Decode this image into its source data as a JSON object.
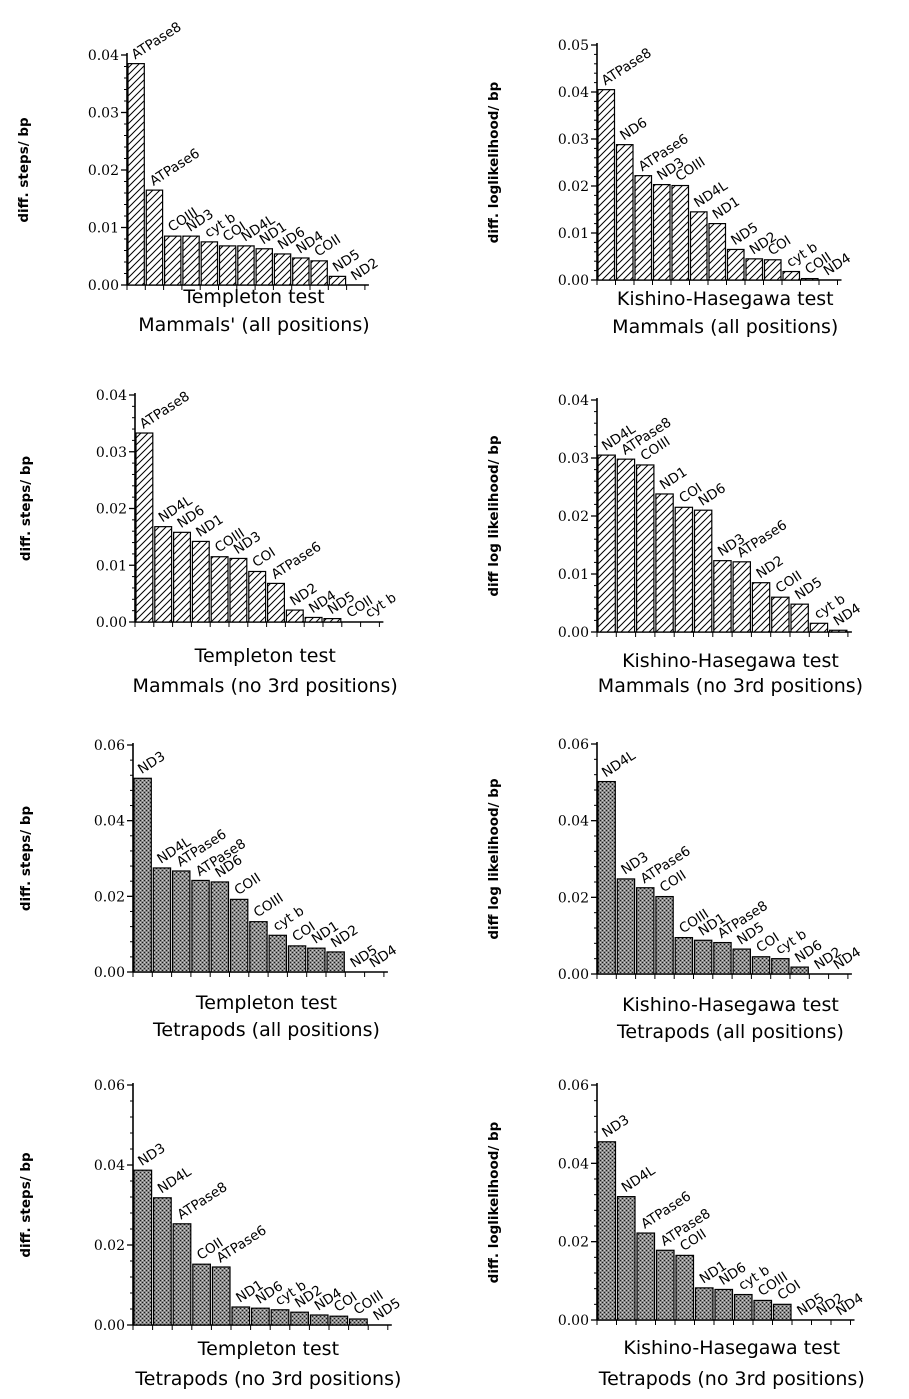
{
  "chart_data": [
    {
      "type": "bar",
      "caption_line1": "Templeton test",
      "caption_line2": "Mammals' (all positions)",
      "ylabel": "diff. steps/ bp",
      "ylim": [
        0,
        0.04
      ],
      "yticks": [
        "0.00",
        "0.01",
        "0.02",
        "0.03",
        "0.04"
      ],
      "pattern": "hatch",
      "categories": [
        "ATPase8",
        "ATPase6",
        "COIII",
        "ND3",
        "cyt b",
        "COI",
        "ND4L",
        "ND1",
        "ND6",
        "ND4",
        "COII",
        "ND5",
        "ND2"
      ],
      "values": [
        0.0385,
        0.0165,
        0.0085,
        0.0085,
        0.0075,
        0.0068,
        0.0068,
        0.0063,
        0.0054,
        0.0047,
        0.0042,
        0.0015,
        0.0
      ]
    },
    {
      "type": "bar",
      "caption_line1": "Kishino-Hasegawa test",
      "caption_line2": "Mammals (all positions)",
      "ylabel": "diff. loglikelihood/ bp",
      "ylim": [
        0,
        0.05
      ],
      "yticks": [
        "0.00",
        "0.01",
        "0.02",
        "0.03",
        "0.04",
        "0.05"
      ],
      "pattern": "hatch",
      "categories": [
        "ATPase8",
        "ND6",
        "ATPase6",
        "ND3",
        "COIII",
        "ND4L",
        "ND1",
        "ND5",
        "ND2",
        "COI",
        "cyt b",
        "COII",
        "ND4"
      ],
      "values": [
        0.0405,
        0.0288,
        0.0222,
        0.0203,
        0.0201,
        0.0145,
        0.012,
        0.0065,
        0.0045,
        0.0043,
        0.0018,
        0.0003,
        0.0
      ]
    },
    {
      "type": "bar",
      "caption_line1": "Templeton test",
      "caption_line2": "Mammals (no 3rd positions)",
      "ylabel": "diff. steps/ bp",
      "ylim": [
        0,
        0.04
      ],
      "yticks": [
        "0.00",
        "0.01",
        "0.02",
        "0.03",
        "0.04"
      ],
      "pattern": "hatch",
      "categories": [
        "ATPase8",
        "ND4L",
        "ND6",
        "ND1",
        "COIII",
        "ND3",
        "COI",
        "ATPase6",
        "ND2",
        "ND4",
        "ND5",
        "COII",
        "cyt b"
      ],
      "values": [
        0.0333,
        0.0168,
        0.0158,
        0.0142,
        0.0115,
        0.0112,
        0.0089,
        0.0068,
        0.0021,
        0.0008,
        0.0006,
        0.0,
        0.0
      ]
    },
    {
      "type": "bar",
      "caption_line1": "Kishino-Hasegawa test",
      "caption_line2": "Mammals (no 3rd positions)",
      "ylabel": "diff log likelihood/ bp",
      "ylim": [
        0,
        0.04
      ],
      "yticks": [
        "0.00",
        "0.01",
        "0.02",
        "0.03",
        "0.04"
      ],
      "pattern": "hatch",
      "categories": [
        "ND4L",
        "ATPase8",
        "COIII",
        "ND1",
        "COI",
        "ND6",
        "ND3",
        "ATPase6",
        "ND2",
        "COII",
        "ND5",
        "cyt b",
        "ND4"
      ],
      "values": [
        0.0305,
        0.0298,
        0.0288,
        0.0238,
        0.0215,
        0.021,
        0.0123,
        0.0121,
        0.0085,
        0.006,
        0.0048,
        0.0015,
        0.0003
      ]
    },
    {
      "type": "bar",
      "caption_line1": "Templeton test",
      "caption_line2": "Tetrapods (all positions)",
      "ylabel": "diff. steps/ bp",
      "ylim": [
        0,
        0.06
      ],
      "yticks": [
        "0.00",
        "0.02",
        "0.04",
        "0.06"
      ],
      "pattern": "stipple",
      "categories": [
        "ND3",
        "ND4L",
        "ATPase6",
        "ATPase8",
        "ND6",
        "COII",
        "COIII",
        "cyt b",
        "COI",
        "ND1",
        "ND2",
        "ND5",
        "ND4"
      ],
      "values": [
        0.0512,
        0.0275,
        0.0267,
        0.0242,
        0.0238,
        0.0192,
        0.0133,
        0.0097,
        0.0069,
        0.0063,
        0.0053,
        0.0,
        0.0
      ]
    },
    {
      "type": "bar",
      "caption_line1": "Kishino-Hasegawa test",
      "caption_line2": "Tetrapods (all positions)",
      "ylabel": "diff log likelihood/ bp",
      "ylim": [
        0,
        0.06
      ],
      "yticks": [
        "0.00",
        "0.02",
        "0.04",
        "0.06"
      ],
      "pattern": "stipple",
      "categories": [
        "ND4L",
        "ND3",
        "ATPase6",
        "COII",
        "COIII",
        "ND1",
        "ATPase8",
        "ND5",
        "COI",
        "cyt b",
        "ND6",
        "ND2",
        "ND4"
      ],
      "values": [
        0.0502,
        0.0248,
        0.0225,
        0.0202,
        0.0095,
        0.0088,
        0.0082,
        0.0065,
        0.0045,
        0.004,
        0.0018,
        0.0,
        0.0
      ]
    },
    {
      "type": "bar",
      "caption_line1": "Templeton test",
      "caption_line2": "Tetrapods (no 3rd positions)",
      "ylabel": "diff. steps/ bp",
      "ylim": [
        0,
        0.06
      ],
      "yticks": [
        "0.00",
        "0.02",
        "0.04",
        "0.06"
      ],
      "pattern": "stipple",
      "categories": [
        "ND3",
        "ND4L",
        "ATPase8",
        "COII",
        "ATPase6",
        "ND1",
        "ND6",
        "cyt b",
        "ND2",
        "ND4",
        "COI",
        "COIII",
        "ND5"
      ],
      "values": [
        0.0387,
        0.0318,
        0.0253,
        0.0152,
        0.0145,
        0.0045,
        0.0042,
        0.0038,
        0.0032,
        0.0025,
        0.0022,
        0.0015,
        0.0
      ]
    },
    {
      "type": "bar",
      "caption_line1": "Kishino-Hasegawa test",
      "caption_line2": "Tetrapods (no 3rd positions)",
      "ylabel": "diff. loglikelihood/ bp",
      "ylim": [
        0,
        0.06
      ],
      "yticks": [
        "0.00",
        "0.02",
        "0.04",
        "0.06"
      ],
      "pattern": "stipple",
      "categories": [
        "ND3",
        "ND4L",
        "ATPase6",
        "ATPase8",
        "COII",
        "ND1",
        "ND6",
        "cyt b",
        "COIII",
        "COI",
        "ND5",
        "ND2",
        "ND4"
      ],
      "values": [
        0.0455,
        0.0315,
        0.0222,
        0.0178,
        0.0165,
        0.0082,
        0.0078,
        0.0065,
        0.005,
        0.004,
        0.0,
        0.0,
        0.0
      ]
    }
  ]
}
